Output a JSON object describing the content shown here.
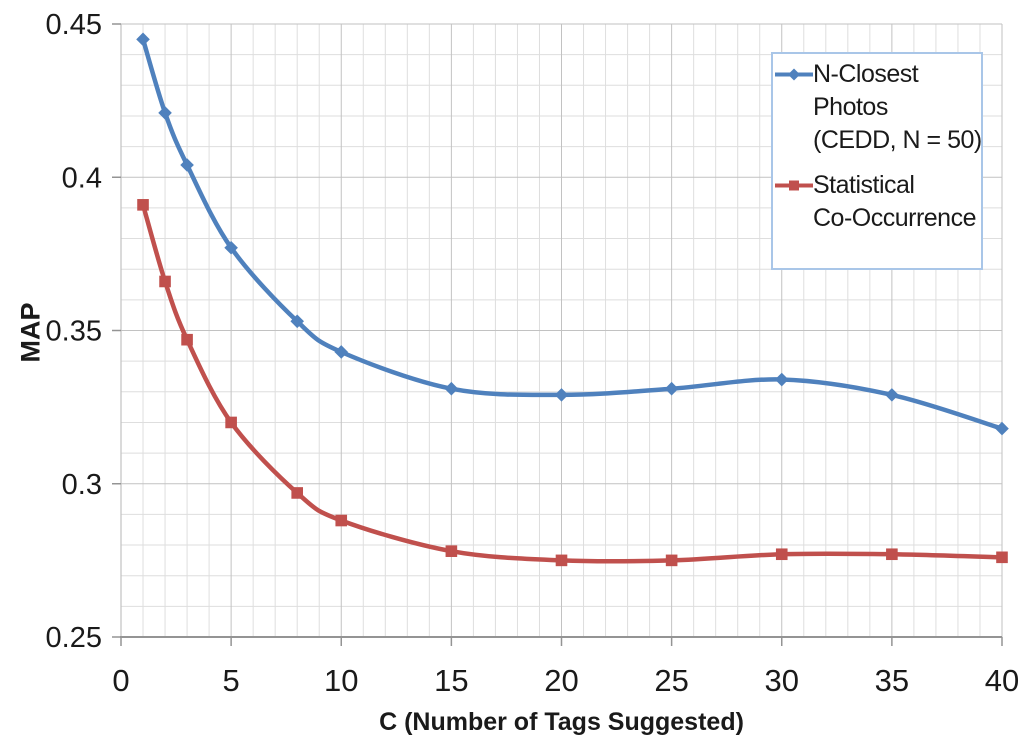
{
  "chart_data": {
    "type": "line",
    "title": "",
    "xlabel": "C (Number of Tags Suggested)",
    "ylabel": "MAP",
    "xlim": [
      0,
      40
    ],
    "ylim": [
      0.25,
      0.45
    ],
    "x_major_ticks": [
      0,
      5,
      10,
      15,
      20,
      25,
      30,
      35,
      40
    ],
    "x_tick_labels": [
      "0",
      "5",
      "10",
      "15",
      "20",
      "25",
      "30",
      "35",
      "40"
    ],
    "y_major_ticks": [
      0.25,
      0.3,
      0.35,
      0.4,
      0.45
    ],
    "y_tick_labels": [
      "0.25",
      "0.3",
      "0.35",
      "0.4",
      "0.45"
    ],
    "x_minor_step": 1,
    "y_minor_step": 0.01,
    "grid": "major and minor gridlines on both axes",
    "smoothed_lines": true,
    "legend_position": "top-right",
    "legend_border_color": "#A9C6E8",
    "x": [
      1,
      2,
      3,
      5,
      8,
      10,
      15,
      20,
      25,
      30,
      35,
      40
    ],
    "series": [
      {
        "name": "N-Closest Photos (CEDD, N = 50)",
        "legend_lines": "N-Closest\nPhotos\n(CEDD, N = 50)",
        "color": "#4F81BD",
        "marker": "diamond",
        "values": [
          0.445,
          0.421,
          0.404,
          0.377,
          0.353,
          0.343,
          0.331,
          0.329,
          0.331,
          0.334,
          0.329,
          0.318
        ]
      },
      {
        "name": "Statistical Co-Occurrence",
        "legend_lines": "Statistical\nCo-Occurrence",
        "color": "#C0504D",
        "marker": "square",
        "values": [
          0.391,
          0.366,
          0.347,
          0.32,
          0.297,
          0.288,
          0.278,
          0.275,
          0.275,
          0.277,
          0.277,
          0.276
        ]
      }
    ]
  }
}
